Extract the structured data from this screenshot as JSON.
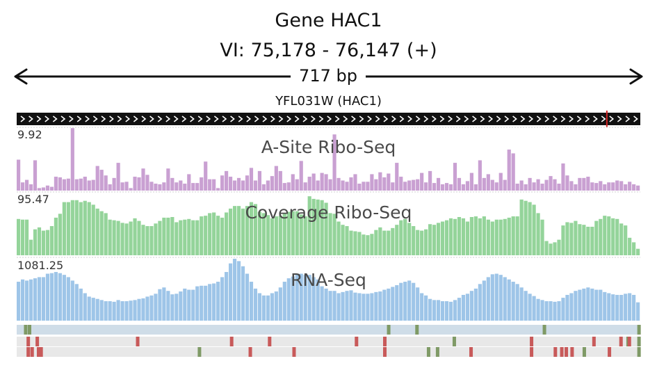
{
  "header": {
    "title": "Gene HAC1",
    "locus": "VI: 75,178 - 76,147 (+)",
    "length": "717 bp"
  },
  "gene": {
    "name": "YFL031W (HAC1)",
    "strand": "+",
    "bar_color": "#111111",
    "marker_color": "#d22222"
  },
  "tracks": [
    {
      "id": "asite",
      "title": "A-Site Ribo-Seq",
      "max_label": "9.92",
      "max": 9.92,
      "color": "#c9a0d2"
    },
    {
      "id": "coverage",
      "title": "Coverage Ribo-Seq",
      "max_label": "95.47",
      "max": 95.47,
      "color": "#94d49a"
    },
    {
      "id": "rnaseq",
      "title": "RNA-Seq",
      "max_label": "1081.25",
      "max": 1081.25,
      "color": "#9ec5e8"
    }
  ],
  "chart_data": {
    "type": "bar",
    "x_range": [
      75178,
      76147
    ],
    "bins": 150,
    "series": [
      {
        "name": "A-Site Ribo-Seq",
        "values": [
          4.9,
          1.3,
          1.7,
          1.0,
          4.8,
          0.4,
          0.5,
          0.8,
          0.6,
          2.2,
          2.1,
          1.8,
          1.9,
          9.9,
          1.8,
          1.9,
          2.2,
          1.6,
          1.7,
          3.9,
          3.3,
          2.4,
          1.0,
          2.0,
          4.4,
          1.3,
          1.4,
          0.4,
          2.2,
          2.1,
          3.5,
          2.5,
          1.4,
          1.1,
          1.0,
          1.3,
          3.5,
          2.0,
          1.3,
          1.6,
          1.1,
          2.6,
          1.2,
          1.2,
          2.1,
          4.6,
          1.8,
          1.8,
          0.4,
          2.4,
          3.1,
          2.2,
          1.6,
          2.0,
          1.6,
          2.4,
          3.6,
          1.6,
          3.1,
          1.0,
          1.6,
          2.3,
          3.9,
          3.1,
          1.2,
          1.3,
          2.6,
          1.8,
          4.7,
          1.3,
          2.2,
          2.7,
          1.6,
          2.8,
          2.6,
          1.8,
          8.9,
          2.0,
          1.6,
          1.4,
          2.1,
          2.6,
          1.1,
          1.4,
          1.4,
          2.6,
          1.8,
          2.9,
          2.1,
          2.7,
          1.3,
          4.4,
          2.2,
          1.4,
          1.6,
          1.7,
          1.8,
          2.8,
          1.3,
          3.1,
          1.2,
          2.0,
          1.0,
          1.2,
          1.0,
          4.4,
          2.0,
          1.0,
          1.5,
          2.8,
          1.0,
          4.8,
          2.0,
          2.6,
          1.7,
          1.3,
          2.8,
          1.7,
          6.5,
          5.9,
          1.1,
          1.6,
          1.0,
          2.0,
          1.3,
          1.8,
          1.1,
          1.7,
          2.3,
          1.8,
          1.1,
          4.3,
          2.4,
          1.5,
          1.0,
          2.0,
          2.0,
          2.2,
          1.3,
          1.2,
          1.5,
          1.0,
          1.3,
          1.3,
          1.6,
          1.5,
          1.0,
          1.4,
          1.0,
          0.8
        ]
      },
      {
        "name": "Coverage Ribo-Seq",
        "values": [
          56,
          55,
          55,
          24,
          40,
          43,
          38,
          39,
          45,
          58,
          64,
          82,
          82,
          85,
          85,
          82,
          84,
          82,
          78,
          72,
          68,
          65,
          55,
          54,
          53,
          50,
          49,
          52,
          57,
          53,
          47,
          45,
          45,
          49,
          53,
          58,
          58,
          59,
          51,
          54,
          55,
          56,
          54,
          54,
          60,
          61,
          65,
          66,
          61,
          58,
          66,
          72,
          76,
          76,
          72,
          76,
          82,
          79,
          67,
          65,
          62,
          57,
          60,
          61,
          64,
          67,
          68,
          68,
          63,
          60,
          91,
          87,
          86,
          85,
          81,
          65,
          64,
          52,
          47,
          45,
          38,
          37,
          36,
          32,
          31,
          33,
          39,
          43,
          38,
          38,
          42,
          47,
          54,
          56,
          50,
          45,
          39,
          38,
          40,
          48,
          47,
          50,
          52,
          54,
          57,
          56,
          59,
          57,
          52,
          59,
          60,
          57,
          60,
          55,
          52,
          55,
          55,
          56,
          58,
          60,
          60,
          86,
          84,
          82,
          78,
          65,
          55,
          22,
          18,
          20,
          24,
          46,
          51,
          50,
          53,
          48,
          47,
          44,
          44,
          53,
          56,
          61,
          60,
          57,
          56,
          49,
          46,
          27,
          20,
          10
        ]
      },
      {
        "name": "RNA-Seq",
        "values": [
          680,
          720,
          700,
          720,
          740,
          760,
          760,
          820,
          830,
          850,
          830,
          800,
          760,
          700,
          640,
          560,
          480,
          420,
          400,
          380,
          360,
          340,
          340,
          330,
          360,
          340,
          340,
          350,
          360,
          380,
          390,
          420,
          440,
          470,
          550,
          580,
          520,
          460,
          470,
          510,
          560,
          540,
          540,
          600,
          610,
          610,
          640,
          650,
          680,
          760,
          850,
          1000,
          1081,
          1040,
          950,
          820,
          680,
          560,
          480,
          440,
          440,
          480,
          510,
          580,
          680,
          740,
          770,
          820,
          820,
          800,
          800,
          760,
          720,
          600,
          560,
          520,
          520,
          480,
          500,
          520,
          530,
          490,
          480,
          470,
          470,
          480,
          500,
          510,
          540,
          560,
          590,
          620,
          660,
          680,
          700,
          660,
          580,
          480,
          440,
          380,
          360,
          360,
          340,
          340,
          330,
          360,
          400,
          450,
          470,
          520,
          560,
          640,
          700,
          760,
          810,
          820,
          800,
          760,
          720,
          680,
          640,
          580,
          520,
          470,
          430,
          380,
          360,
          340,
          340,
          330,
          340,
          400,
          450,
          480,
          520,
          540,
          560,
          580,
          560,
          540,
          540,
          500,
          480,
          460,
          450,
          450,
          470,
          480,
          450,
          320
        ]
      }
    ]
  },
  "features": {
    "rows": [
      {
        "background": "#cfdde8",
        "marks": [
          {
            "pos": 75192,
            "color": "#7f9a66"
          },
          {
            "pos": 75198,
            "color": "#7f9a66"
          },
          {
            "pos": 75756,
            "color": "#7f9a66"
          },
          {
            "pos": 75800,
            "color": "#7f9a66"
          },
          {
            "pos": 75998,
            "color": "#7f9a66"
          },
          {
            "pos": 76145,
            "color": "#7f9a66"
          }
        ]
      },
      {
        "background": "#e8e8e8",
        "marks": [
          {
            "pos": 75196,
            "color": "#c85a5a"
          },
          {
            "pos": 75210,
            "color": "#c85a5a"
          },
          {
            "pos": 75366,
            "color": "#c85a5a"
          },
          {
            "pos": 75512,
            "color": "#c85a5a"
          },
          {
            "pos": 75571,
            "color": "#c85a5a"
          },
          {
            "pos": 75706,
            "color": "#c85a5a"
          },
          {
            "pos": 75750,
            "color": "#c85a5a"
          },
          {
            "pos": 75858,
            "color": "#7f9a66"
          },
          {
            "pos": 75978,
            "color": "#c85a5a"
          },
          {
            "pos": 76075,
            "color": "#c85a5a"
          },
          {
            "pos": 76117,
            "color": "#c85a5a"
          },
          {
            "pos": 76128,
            "color": "#7f9a66"
          },
          {
            "pos": 76130,
            "color": "#c85a5a"
          },
          {
            "pos": 76145,
            "color": "#7f9a66"
          }
        ]
      },
      {
        "background": "#e8e8e8",
        "marks": [
          {
            "pos": 75196,
            "color": "#c85a5a"
          },
          {
            "pos": 75202,
            "color": "#c85a5a"
          },
          {
            "pos": 75212,
            "color": "#c85a5a"
          },
          {
            "pos": 75216,
            "color": "#c85a5a"
          },
          {
            "pos": 75462,
            "color": "#7f9a66"
          },
          {
            "pos": 75541,
            "color": "#c85a5a"
          },
          {
            "pos": 75609,
            "color": "#c85a5a"
          },
          {
            "pos": 75750,
            "color": "#c85a5a"
          },
          {
            "pos": 75818,
            "color": "#7f9a66"
          },
          {
            "pos": 75832,
            "color": "#7f9a66"
          },
          {
            "pos": 75884,
            "color": "#c85a5a"
          },
          {
            "pos": 75978,
            "color": "#c85a5a"
          },
          {
            "pos": 76015,
            "color": "#c85a5a"
          },
          {
            "pos": 76025,
            "color": "#c85a5a"
          },
          {
            "pos": 76032,
            "color": "#c85a5a"
          },
          {
            "pos": 76041,
            "color": "#c85a5a"
          },
          {
            "pos": 76060,
            "color": "#7f9a66"
          },
          {
            "pos": 76099,
            "color": "#c85a5a"
          },
          {
            "pos": 76145,
            "color": "#7f9a66"
          }
        ]
      }
    ]
  },
  "marker_pos": 76095
}
